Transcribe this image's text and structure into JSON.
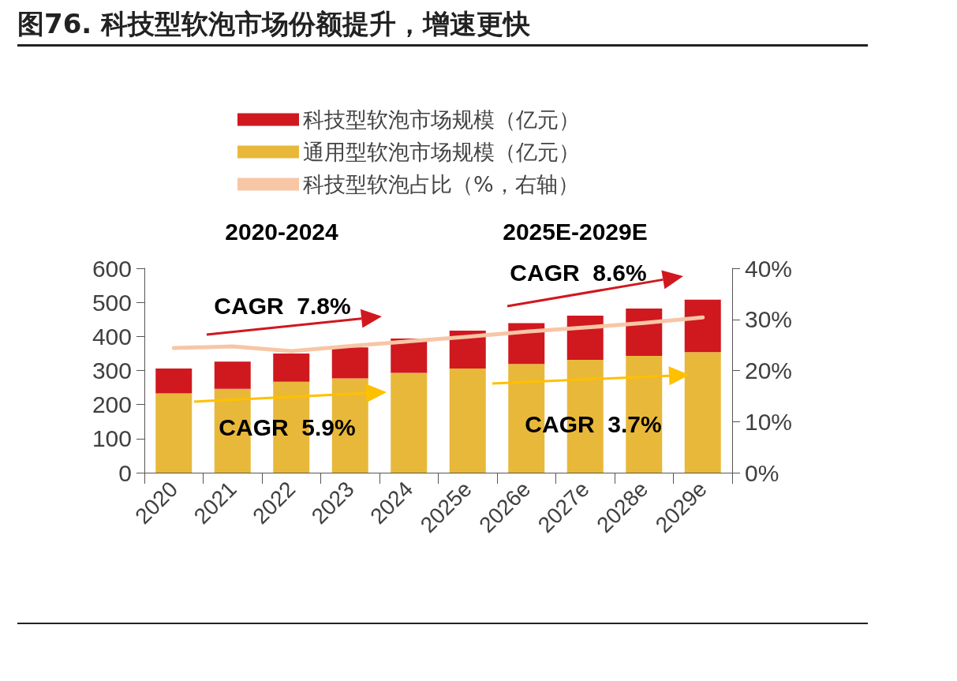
{
  "chart_data": {
    "type": "bar",
    "title": "图76. 科技型软泡市场份额提升，增速更快",
    "categories": [
      "2020",
      "2021",
      "2022",
      "2023",
      "2024",
      "2025e",
      "2026e",
      "2027e",
      "2028e",
      "2029e"
    ],
    "stacked": true,
    "series": [
      {
        "name": "通用型软泡市场规模（亿元）",
        "color": "#e8b83a",
        "values": [
          233,
          246,
          267,
          277,
          293,
          306,
          319,
          331,
          343,
          354
        ]
      },
      {
        "name": "科技型软泡市场规模（亿元）",
        "color": "#d0181f",
        "values": [
          73,
          80,
          83,
          91,
          101,
          111,
          120,
          130,
          139,
          154
        ]
      },
      {
        "name": "科技型软泡占比（%，右轴）",
        "type": "line",
        "axis": "y2",
        "color": "#f7c6a5",
        "values": [
          24.4,
          24.7,
          23.8,
          24.8,
          25.7,
          26.6,
          27.6,
          28.4,
          29.3,
          30.4
        ]
      }
    ],
    "ylim": [
      0,
      600
    ],
    "yticks": [
      0,
      100,
      200,
      300,
      400,
      500,
      600
    ],
    "y2lim": [
      0,
      40
    ],
    "y2ticks": [
      {
        "value": 0,
        "label": "0%"
      },
      {
        "value": 10,
        "label": "10%"
      },
      {
        "value": 20,
        "label": "20%"
      },
      {
        "value": 30,
        "label": "30%"
      },
      {
        "value": 40,
        "label": "40%"
      }
    ],
    "grid": false,
    "legend": "top left",
    "marker": "none",
    "line_style": "solid",
    "annotations": [
      "2020-2024",
      "2025E-2029E",
      "CAGR  7.8%",
      "CAGR  5.9%",
      "CAGR  8.6%",
      "CAGR  3.7%"
    ]
  }
}
